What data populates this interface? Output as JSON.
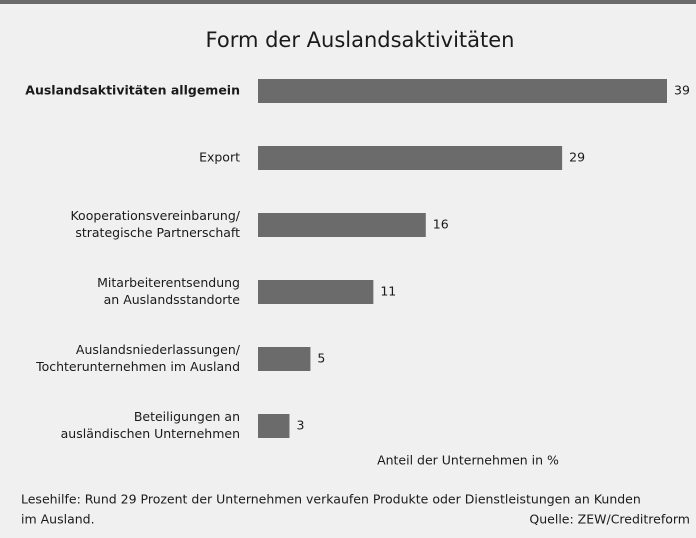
{
  "chart_data": {
    "type": "bar",
    "orientation": "horizontal",
    "title": "Form der Auslandsaktivitäten",
    "categories": [
      [
        "Auslandsaktivitäten allgemein"
      ],
      [
        "Export"
      ],
      [
        "Kooperationsvereinbarung/",
        "strategische Partnerschaft"
      ],
      [
        "Mitarbeiterentsendung",
        "an Auslandsstandorte"
      ],
      [
        "Auslandsniederlassungen/",
        "Tochterunternehmen im Ausland"
      ],
      [
        "Beteiligungen an",
        "ausländischen Unternehmen"
      ]
    ],
    "values": [
      39,
      29,
      16,
      11,
      5,
      3
    ],
    "color": "#6b6b6b",
    "xlabel": "Anteil der Unternehmen in %",
    "note": [
      "Lesehilfe: Rund 29 Prozent der Unternehmen verkaufen Produkte oder Dienstleistungen an Kunden",
      "im Ausland."
    ],
    "source": "Quelle: ZEW/Creditreform"
  }
}
